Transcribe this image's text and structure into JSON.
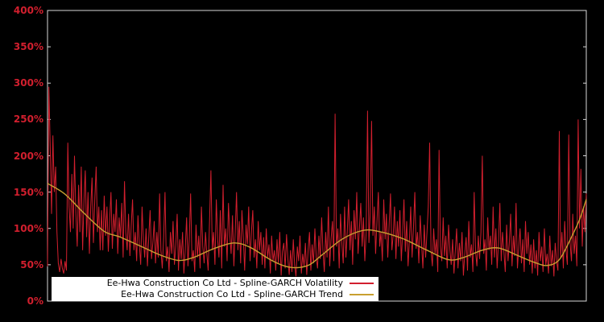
{
  "chart_data": {
    "type": "line",
    "title": "",
    "xlabel": "",
    "ylabel": "",
    "ylim": [
      0,
      400
    ],
    "yticks": [
      "0%",
      "50%",
      "100%",
      "150%",
      "200%",
      "250%",
      "300%",
      "350%",
      "400%"
    ],
    "ytick_values": [
      0,
      50,
      100,
      150,
      200,
      250,
      300,
      350,
      400
    ],
    "grid": false,
    "legend_position": "bottom-center-inside",
    "background_color": "#000000",
    "axis_color": "#d9d9d9",
    "tick_label_color": "#d21f2e",
    "legend_background": "#ffffff",
    "series": [
      {
        "name": "Ee-Hwa Construction Co Ltd - Spline-GARCH Volatility",
        "color": "#d21f2e",
        "unit": "%",
        "style": "noisy-line",
        "values": [
          48,
          295,
          210,
          120,
          228,
          150,
          185,
          95,
          52,
          40,
          58,
          45,
          38,
          55,
          42,
          218,
          130,
          95,
          175,
          100,
          200,
          120,
          75,
          160,
          95,
          185,
          70,
          140,
          180,
          88,
          150,
          65,
          130,
          170,
          80,
          140,
          185,
          95,
          130,
          70,
          125,
          70,
          145,
          90,
          130,
          68,
          110,
          150,
          72,
          120,
          95,
          140,
          65,
          115,
          88,
          135,
          60,
          165,
          95,
          70,
          120,
          62,
          105,
          140,
          70,
          95,
          55,
          118,
          78,
          50,
          130,
          85,
          60,
          100,
          48,
          90,
          125,
          58,
          80,
          110,
          52,
          95,
          60,
          148,
          70,
          45,
          88,
          150,
          55,
          75,
          40,
          95,
          65,
          110,
          50,
          78,
          120,
          42,
          85,
          58,
          95,
          38,
          70,
          115,
          48,
          88,
          148,
          55,
          70,
          40,
          105,
          60,
          90,
          45,
          130,
          75,
          52,
          95,
          65,
          42,
          110,
          180,
          70,
          95,
          50,
          140,
          85,
          60,
          125,
          45,
          160,
          75,
          100,
          55,
          135,
          90,
          65,
          118,
          48,
          95,
          150,
          70,
          110,
          52,
          125,
          88,
          42,
          105,
          78,
          130,
          55,
          95,
          125,
          60,
          85,
          45,
          110,
          70,
          95,
          50,
          88,
          45,
          100,
          60,
          78,
          38,
          90,
          55,
          70,
          42,
          85,
          52,
          95,
          35,
          68,
          80,
          45,
          92,
          58,
          36,
          70,
          40,
          85,
          50,
          34,
          75,
          55,
          90,
          38,
          65,
          48,
          80,
          36,
          70,
          95,
          42,
          78,
          52,
          100,
          60,
          45,
          90,
          58,
          115,
          70,
          40,
          95,
          60,
          130,
          48,
          85,
          110,
          55,
          258,
          75,
          100,
          45,
          120,
          80,
          52,
          130,
          60,
          95,
          140,
          70,
          110,
          50,
          125,
          85,
          150,
          65,
          100,
          135,
          75,
          115,
          55,
          95,
          262,
          80,
          120,
          248,
          90,
          130,
          65,
          110,
          150,
          75,
          95,
          55,
          140,
          85,
          120,
          60,
          105,
          148,
          70,
          90,
          130,
          58,
          110,
          75,
          125,
          55,
          95,
          140,
          68,
          110,
          48,
          85,
          130,
          60,
          100,
          150,
          72,
          95,
          52,
          118,
          80,
          45,
          105,
          60,
          95,
          130,
          218,
          70,
          48,
          100,
          65,
          85,
          40,
          208,
          75,
          55,
          115,
          62,
          90,
          45,
          105,
          70,
          50,
          85,
          38,
          70,
          100,
          45,
          80,
          55,
          95,
          35,
          65,
          88,
          42,
          110,
          60,
          78,
          40,
          150,
          68,
          48,
          90,
          58,
          95,
          200,
          65,
          85,
          42,
          115,
          70,
          90,
          50,
          130,
          60,
          100,
          45,
          80,
          135,
          55,
          95,
          68,
          40,
          105,
          55,
          80,
          120,
          48,
          90,
          62,
          135,
          45,
          75,
          100,
          52,
          85,
          40,
          110,
          65,
          95,
          50,
          78,
          38,
          85,
          45,
          70,
          35,
          95,
          55,
          75,
          40,
          100,
          50,
          65,
          38,
          90,
          48,
          70,
          34,
          80,
          55,
          42,
          234,
          60,
          95,
          45,
          110,
          70,
          50,
          229,
          80,
          55,
          120,
          65,
          90,
          48,
          250,
          100,
          182,
          75,
          130,
          95,
          148
        ]
      },
      {
        "name": "Ee-Hwa Construction Co Ltd - Spline-GARCH Trend",
        "color": "#c8a030",
        "unit": "%",
        "style": "smooth-spline",
        "points": [
          [
            0,
            162
          ],
          [
            13,
            147
          ],
          [
            27,
            121
          ],
          [
            42,
            96
          ],
          [
            54,
            88
          ],
          [
            72,
            73
          ],
          [
            84,
            63
          ],
          [
            97,
            56
          ],
          [
            108,
            60
          ],
          [
            123,
            72
          ],
          [
            138,
            80
          ],
          [
            150,
            74
          ],
          [
            165,
            57
          ],
          [
            176,
            48
          ],
          [
            185,
            46
          ],
          [
            194,
            50
          ],
          [
            203,
            63
          ],
          [
            218,
            85
          ],
          [
            233,
            97
          ],
          [
            245,
            96
          ],
          [
            263,
            86
          ],
          [
            281,
            70
          ],
          [
            297,
            57
          ],
          [
            308,
            60
          ],
          [
            322,
            70
          ],
          [
            334,
            73
          ],
          [
            349,
            62
          ],
          [
            361,
            53
          ],
          [
            370,
            49
          ],
          [
            379,
            57
          ],
          [
            388,
            88
          ],
          [
            394,
            112
          ],
          [
            399,
            140
          ]
        ]
      }
    ]
  },
  "legend": {
    "volatility_label": "Ee-Hwa Construction Co Ltd - Spline-GARCH Volatility",
    "trend_label": "Ee-Hwa Construction Co Ltd - Spline-GARCH Trend"
  }
}
